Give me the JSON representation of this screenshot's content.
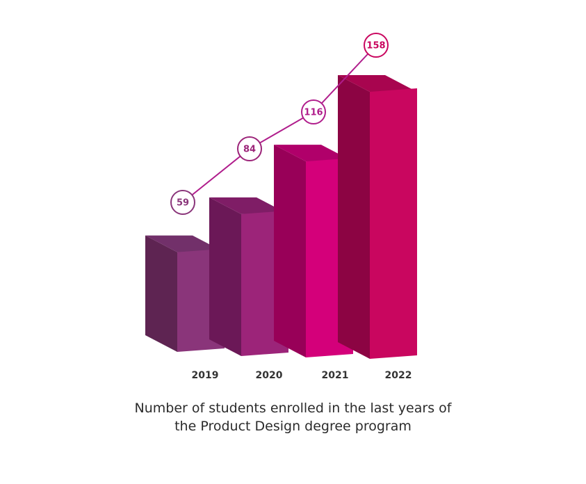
{
  "chart_data": {
    "type": "bar",
    "categories": [
      "2019",
      "2020",
      "2021",
      "2022"
    ],
    "values": [
      59,
      84,
      116,
      158
    ],
    "title_line_1": "Number of students enrolled in the last years of",
    "title_line_2": "the Product Design degree program",
    "xlabel": "",
    "ylabel": "",
    "grid": false,
    "legend": "none",
    "colors": {
      "bars": [
        {
          "front": "#8a357a",
          "side": "#5e2452",
          "top": "#72306a"
        },
        {
          "front": "#9c2479",
          "side": "#6b1857",
          "top": "#7f1d66"
        },
        {
          "front": "#d4007a",
          "side": "#980058",
          "top": "#b0006a"
        },
        {
          "front": "#c9065f",
          "side": "#8c0443",
          "top": "#a8054f"
        }
      ],
      "line": "#b01d8c",
      "marker_text": [
        "#8a357a",
        "#9c2479",
        "#b01d8c",
        "#c9065f"
      ]
    }
  }
}
